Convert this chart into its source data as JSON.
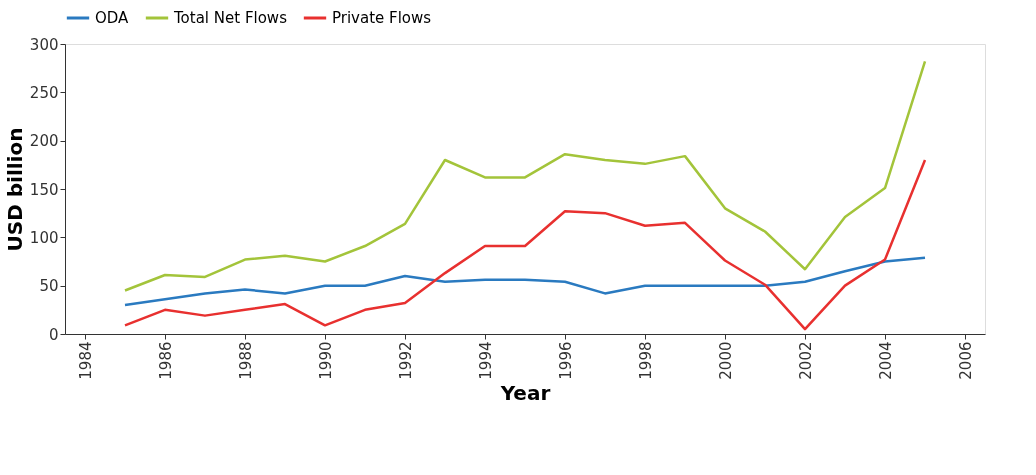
{
  "chart_data": {
    "type": "line",
    "xlabel": "Year",
    "ylabel": "USD billion",
    "x": [
      1985,
      1986,
      1987,
      1988,
      1989,
      1990,
      1991,
      1992,
      1993,
      1994,
      1995,
      1996,
      1997,
      1998,
      1999,
      2000,
      2001,
      2002,
      2003,
      2004,
      2005
    ],
    "series": [
      {
        "name": "ODA",
        "color": "#2a7ac0",
        "values": [
          30,
          36,
          42,
          46,
          42,
          50,
          50,
          60,
          54,
          56,
          56,
          54,
          42,
          50,
          50,
          50,
          50,
          54,
          65,
          75,
          79
        ]
      },
      {
        "name": "Total Net Flows",
        "color": "#a3c43a",
        "values": [
          45,
          61,
          59,
          77,
          81,
          75,
          91,
          114,
          180,
          162,
          162,
          186,
          180,
          176,
          184,
          130,
          106,
          67,
          121,
          151,
          282
        ]
      },
      {
        "name": "Private Flows",
        "color": "#e8302f",
        "values": [
          9,
          25,
          19,
          25,
          31,
          9,
          25,
          32,
          63,
          91,
          91,
          127,
          125,
          112,
          115,
          76,
          51,
          5,
          50,
          77,
          180
        ]
      }
    ],
    "xlim": [
      1983.5,
      2006.5
    ],
    "xticks": [
      1984,
      1986,
      1988,
      1990,
      1992,
      1994,
      1996,
      1998,
      2000,
      2002,
      2004,
      2006
    ],
    "ylim": [
      0,
      300
    ],
    "yticks": [
      0,
      50,
      100,
      150,
      200,
      250,
      300
    ],
    "grid": false,
    "legend": "top",
    "marker": "none",
    "line_style": "solid"
  }
}
